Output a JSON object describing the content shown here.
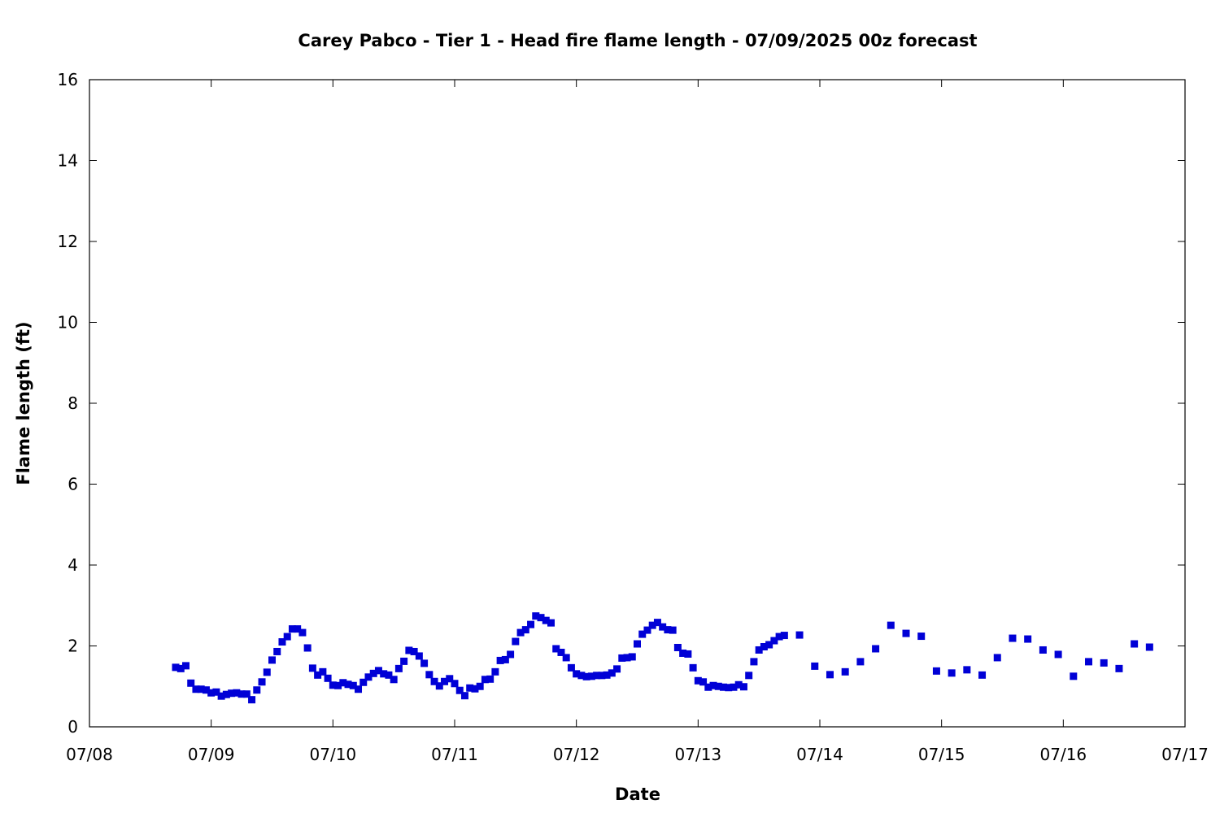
{
  "chart_data": {
    "type": "scatter",
    "title": "Carey Pabco - Tier 1 - Head fire flame length - 07/09/2025 00z forecast",
    "xlabel": "Date",
    "ylabel": "Flame length (ft)",
    "xlim": [
      "2025-07-08 00:00",
      "2025-07-17 00:00"
    ],
    "ylim": [
      0,
      16
    ],
    "x_ticks": [
      "07/08",
      "07/09",
      "07/10",
      "07/11",
      "07/12",
      "07/13",
      "07/14",
      "07/15",
      "07/16",
      "07/17"
    ],
    "y_ticks": [
      0,
      2,
      4,
      6,
      8,
      10,
      12,
      14,
      16
    ],
    "grid": false,
    "marker": "square",
    "color": "#0000d6",
    "series": [
      {
        "x": [
          "2025-07-08 17:00",
          "2025-07-08 18:00",
          "2025-07-08 19:00",
          "2025-07-08 20:00",
          "2025-07-08 21:00",
          "2025-07-08 22:00",
          "2025-07-08 23:00",
          "2025-07-09 00:00",
          "2025-07-09 01:00",
          "2025-07-09 02:00",
          "2025-07-09 03:00",
          "2025-07-09 04:00",
          "2025-07-09 05:00",
          "2025-07-09 06:00",
          "2025-07-09 07:00",
          "2025-07-09 08:00",
          "2025-07-09 09:00",
          "2025-07-09 10:00",
          "2025-07-09 11:00",
          "2025-07-09 12:00",
          "2025-07-09 13:00",
          "2025-07-09 14:00",
          "2025-07-09 15:00",
          "2025-07-09 16:00",
          "2025-07-09 17:00",
          "2025-07-09 18:00",
          "2025-07-09 19:00",
          "2025-07-09 20:00",
          "2025-07-09 21:00",
          "2025-07-09 22:00",
          "2025-07-09 23:00",
          "2025-07-10 00:00",
          "2025-07-10 01:00",
          "2025-07-10 02:00",
          "2025-07-10 03:00",
          "2025-07-10 04:00",
          "2025-07-10 05:00",
          "2025-07-10 06:00",
          "2025-07-10 07:00",
          "2025-07-10 08:00",
          "2025-07-10 09:00",
          "2025-07-10 10:00",
          "2025-07-10 11:00",
          "2025-07-10 12:00",
          "2025-07-10 13:00",
          "2025-07-10 14:00",
          "2025-07-10 15:00",
          "2025-07-10 16:00",
          "2025-07-10 17:00",
          "2025-07-10 18:00",
          "2025-07-10 19:00",
          "2025-07-10 20:00",
          "2025-07-10 21:00",
          "2025-07-10 22:00",
          "2025-07-10 23:00",
          "2025-07-11 00:00",
          "2025-07-11 01:00",
          "2025-07-11 02:00",
          "2025-07-11 03:00",
          "2025-07-11 04:00",
          "2025-07-11 05:00",
          "2025-07-11 06:00",
          "2025-07-11 07:00",
          "2025-07-11 08:00",
          "2025-07-11 09:00",
          "2025-07-11 10:00",
          "2025-07-11 11:00",
          "2025-07-11 12:00",
          "2025-07-11 13:00",
          "2025-07-11 14:00",
          "2025-07-11 15:00",
          "2025-07-11 16:00",
          "2025-07-11 17:00",
          "2025-07-11 18:00",
          "2025-07-11 19:00",
          "2025-07-11 20:00",
          "2025-07-11 21:00",
          "2025-07-11 22:00",
          "2025-07-11 23:00",
          "2025-07-12 00:00",
          "2025-07-12 01:00",
          "2025-07-12 02:00",
          "2025-07-12 03:00",
          "2025-07-12 04:00",
          "2025-07-12 05:00",
          "2025-07-12 06:00",
          "2025-07-12 07:00",
          "2025-07-12 08:00",
          "2025-07-12 09:00",
          "2025-07-12 10:00",
          "2025-07-12 11:00",
          "2025-07-12 12:00",
          "2025-07-12 13:00",
          "2025-07-12 14:00",
          "2025-07-12 15:00",
          "2025-07-12 16:00",
          "2025-07-12 17:00",
          "2025-07-12 18:00",
          "2025-07-12 19:00",
          "2025-07-12 20:00",
          "2025-07-12 21:00",
          "2025-07-12 22:00",
          "2025-07-12 23:00",
          "2025-07-13 00:00",
          "2025-07-13 01:00",
          "2025-07-13 02:00",
          "2025-07-13 03:00",
          "2025-07-13 04:00",
          "2025-07-13 05:00",
          "2025-07-13 06:00",
          "2025-07-13 07:00",
          "2025-07-13 08:00",
          "2025-07-13 09:00",
          "2025-07-13 10:00",
          "2025-07-13 11:00",
          "2025-07-13 12:00",
          "2025-07-13 13:00",
          "2025-07-13 14:00",
          "2025-07-13 15:00",
          "2025-07-13 16:00",
          "2025-07-13 17:00",
          "2025-07-13 20:00",
          "2025-07-13 23:00",
          "2025-07-14 02:00",
          "2025-07-14 05:00",
          "2025-07-14 08:00",
          "2025-07-14 11:00",
          "2025-07-14 14:00",
          "2025-07-14 17:00",
          "2025-07-14 20:00",
          "2025-07-14 23:00",
          "2025-07-15 02:00",
          "2025-07-15 05:00",
          "2025-07-15 08:00",
          "2025-07-15 11:00",
          "2025-07-15 14:00",
          "2025-07-15 17:00",
          "2025-07-15 20:00",
          "2025-07-15 23:00",
          "2025-07-16 02:00",
          "2025-07-16 05:00",
          "2025-07-16 08:00",
          "2025-07-16 11:00",
          "2025-07-16 14:00",
          "2025-07-16 17:00"
        ],
        "y": [
          1.47,
          1.44,
          1.51,
          1.08,
          0.93,
          0.93,
          0.91,
          0.84,
          0.86,
          0.76,
          0.8,
          0.83,
          0.84,
          0.81,
          0.81,
          0.67,
          0.91,
          1.11,
          1.35,
          1.65,
          1.86,
          2.1,
          2.23,
          2.42,
          2.42,
          2.33,
          1.95,
          1.45,
          1.28,
          1.36,
          1.2,
          1.03,
          1.02,
          1.09,
          1.05,
          1.02,
          0.93,
          1.1,
          1.23,
          1.32,
          1.39,
          1.31,
          1.28,
          1.17,
          1.44,
          1.62,
          1.89,
          1.86,
          1.75,
          1.57,
          1.29,
          1.12,
          1.01,
          1.12,
          1.19,
          1.07,
          0.9,
          0.77,
          0.96,
          0.94,
          1.0,
          1.17,
          1.18,
          1.36,
          1.64,
          1.66,
          1.79,
          2.11,
          2.33,
          2.4,
          2.53,
          2.74,
          2.7,
          2.63,
          2.57,
          1.93,
          1.84,
          1.71,
          1.46,
          1.31,
          1.27,
          1.24,
          1.25,
          1.27,
          1.27,
          1.28,
          1.33,
          1.43,
          1.7,
          1.71,
          1.73,
          2.05,
          2.29,
          2.39,
          2.51,
          2.58,
          2.47,
          2.4,
          2.39,
          1.96,
          1.82,
          1.8,
          1.46,
          1.14,
          1.11,
          0.98,
          1.02,
          1.0,
          0.98,
          0.97,
          0.98,
          1.04,
          0.99,
          1.27,
          1.61,
          1.9,
          1.98,
          2.03,
          2.13,
          2.23,
          2.26,
          2.27,
          1.5,
          1.29,
          1.36,
          1.61,
          1.93,
          2.51,
          2.31,
          2.24,
          1.38,
          1.33,
          1.41,
          1.28,
          1.71,
          2.19,
          2.17,
          1.9,
          1.79,
          1.25,
          1.61,
          1.58,
          1.44,
          2.05,
          1.97
        ]
      }
    ]
  }
}
